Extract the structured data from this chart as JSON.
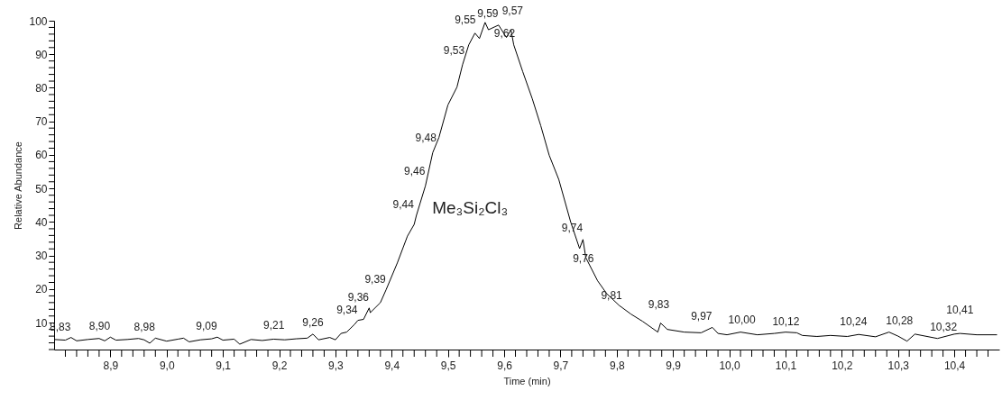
{
  "chart_data": {
    "type": "line",
    "xlabel": "Time (min)",
    "ylabel": "Relative Abundance",
    "xlim": [
      8.8,
      10.48
    ],
    "ylim": [
      2,
      100
    ],
    "xticks": [
      {
        "value": 8.82,
        "label": null
      },
      {
        "value": 8.84,
        "label": null
      },
      {
        "value": 8.86,
        "label": null
      },
      {
        "value": 8.88,
        "label": null
      },
      {
        "value": 8.9,
        "label": "8,9"
      },
      {
        "value": 8.92,
        "label": null
      },
      {
        "value": 8.94,
        "label": null
      },
      {
        "value": 8.96,
        "label": null
      },
      {
        "value": 8.98,
        "label": null
      },
      {
        "value": 9.0,
        "label": "9,0"
      },
      {
        "value": 9.02,
        "label": null
      },
      {
        "value": 9.04,
        "label": null
      },
      {
        "value": 9.06,
        "label": null
      },
      {
        "value": 9.08,
        "label": null
      },
      {
        "value": 9.1,
        "label": "9,1"
      },
      {
        "value": 9.12,
        "label": null
      },
      {
        "value": 9.14,
        "label": null
      },
      {
        "value": 9.16,
        "label": null
      },
      {
        "value": 9.18,
        "label": null
      },
      {
        "value": 9.2,
        "label": "9,2"
      },
      {
        "value": 9.22,
        "label": null
      },
      {
        "value": 9.24,
        "label": null
      },
      {
        "value": 9.26,
        "label": null
      },
      {
        "value": 9.28,
        "label": null
      },
      {
        "value": 9.3,
        "label": "9,3"
      },
      {
        "value": 9.32,
        "label": null
      },
      {
        "value": 9.34,
        "label": null
      },
      {
        "value": 9.36,
        "label": null
      },
      {
        "value": 9.38,
        "label": null
      },
      {
        "value": 9.4,
        "label": "9,4"
      },
      {
        "value": 9.42,
        "label": null
      },
      {
        "value": 9.44,
        "label": null
      },
      {
        "value": 9.46,
        "label": null
      },
      {
        "value": 9.48,
        "label": null
      },
      {
        "value": 9.5,
        "label": "9,5"
      },
      {
        "value": 9.52,
        "label": null
      },
      {
        "value": 9.54,
        "label": null
      },
      {
        "value": 9.56,
        "label": null
      },
      {
        "value": 9.58,
        "label": null
      },
      {
        "value": 9.6,
        "label": "9,6"
      },
      {
        "value": 9.62,
        "label": null
      },
      {
        "value": 9.64,
        "label": null
      },
      {
        "value": 9.66,
        "label": null
      },
      {
        "value": 9.68,
        "label": null
      },
      {
        "value": 9.7,
        "label": "9,7"
      },
      {
        "value": 9.72,
        "label": null
      },
      {
        "value": 9.74,
        "label": null
      },
      {
        "value": 9.76,
        "label": null
      },
      {
        "value": 9.78,
        "label": null
      },
      {
        "value": 9.8,
        "label": "9,8"
      },
      {
        "value": 9.82,
        "label": null
      },
      {
        "value": 9.84,
        "label": null
      },
      {
        "value": 9.86,
        "label": null
      },
      {
        "value": 9.88,
        "label": null
      },
      {
        "value": 9.9,
        "label": "9,9"
      },
      {
        "value": 9.92,
        "label": null
      },
      {
        "value": 9.94,
        "label": null
      },
      {
        "value": 9.96,
        "label": null
      },
      {
        "value": 9.98,
        "label": null
      },
      {
        "value": 10.0,
        "label": "10,0"
      },
      {
        "value": 10.02,
        "label": null
      },
      {
        "value": 10.04,
        "label": null
      },
      {
        "value": 10.06,
        "label": null
      },
      {
        "value": 10.08,
        "label": null
      },
      {
        "value": 10.1,
        "label": "10,1"
      },
      {
        "value": 10.12,
        "label": null
      },
      {
        "value": 10.14,
        "label": null
      },
      {
        "value": 10.16,
        "label": null
      },
      {
        "value": 10.18,
        "label": null
      },
      {
        "value": 10.2,
        "label": "10,2"
      },
      {
        "value": 10.22,
        "label": null
      },
      {
        "value": 10.24,
        "label": null
      },
      {
        "value": 10.26,
        "label": null
      },
      {
        "value": 10.28,
        "label": null
      },
      {
        "value": 10.3,
        "label": "10,3"
      },
      {
        "value": 10.32,
        "label": null
      },
      {
        "value": 10.34,
        "label": null
      },
      {
        "value": 10.36,
        "label": null
      },
      {
        "value": 10.38,
        "label": null
      },
      {
        "value": 10.4,
        "label": "10,4"
      },
      {
        "value": 10.42,
        "label": null
      },
      {
        "value": 10.44,
        "label": null
      },
      {
        "value": 10.46,
        "label": null
      }
    ],
    "yticks": [
      {
        "value": 2,
        "label": null
      },
      {
        "value": 4,
        "label": null
      },
      {
        "value": 6,
        "label": null
      },
      {
        "value": 8,
        "label": null
      },
      10,
      {
        "value": 12,
        "label": null
      },
      {
        "value": 14,
        "label": null
      },
      {
        "value": 16,
        "label": null
      },
      {
        "value": 18,
        "label": null
      },
      20,
      {
        "value": 22,
        "label": null
      },
      {
        "value": 24,
        "label": null
      },
      {
        "value": 26,
        "label": null
      },
      {
        "value": 28,
        "label": null
      },
      30,
      {
        "value": 32,
        "label": null
      },
      {
        "value": 34,
        "label": null
      },
      {
        "value": 36,
        "label": null
      },
      {
        "value": 38,
        "label": null
      },
      40,
      {
        "value": 42,
        "label": null
      },
      {
        "value": 44,
        "label": null
      },
      {
        "value": 46,
        "label": null
      },
      {
        "value": 48,
        "label": null
      },
      50,
      {
        "value": 52,
        "label": null
      },
      {
        "value": 54,
        "label": null
      },
      {
        "value": 56,
        "label": null
      },
      {
        "value": 58,
        "label": null
      },
      60,
      {
        "value": 62,
        "label": null
      },
      {
        "value": 64,
        "label": null
      },
      {
        "value": 66,
        "label": null
      },
      {
        "value": 68,
        "label": null
      },
      70,
      {
        "value": 72,
        "label": null
      },
      {
        "value": 74,
        "label": null
      },
      {
        "value": 76,
        "label": null
      },
      {
        "value": 78,
        "label": null
      },
      80,
      {
        "value": 82,
        "label": null
      },
      {
        "value": 84,
        "label": null
      },
      {
        "value": 86,
        "label": null
      },
      {
        "value": 88,
        "label": null
      },
      90,
      {
        "value": 92,
        "label": null
      },
      {
        "value": 94,
        "label": null
      },
      {
        "value": 96,
        "label": null
      },
      {
        "value": 98,
        "label": null
      },
      100
    ],
    "grid": false,
    "line_style": "solid",
    "marker": "none",
    "x": [
      8.8,
      8.82,
      8.83,
      8.84,
      8.86,
      8.88,
      8.89,
      8.9,
      8.91,
      8.93,
      8.95,
      8.96,
      8.97,
      8.98,
      9.0,
      9.02,
      9.03,
      9.04,
      9.06,
      9.08,
      9.09,
      9.1,
      9.12,
      9.13,
      9.15,
      9.17,
      9.19,
      9.21,
      9.23,
      9.25,
      9.26,
      9.27,
      9.29,
      9.3,
      9.31,
      9.32,
      9.334,
      9.34,
      9.35,
      9.36,
      9.362,
      9.38,
      9.39,
      9.41,
      9.428,
      9.44,
      9.444,
      9.46,
      9.473,
      9.484,
      9.5,
      9.516,
      9.526,
      9.537,
      9.548,
      9.556,
      9.566,
      9.572,
      9.59,
      9.604,
      9.612,
      9.617,
      9.633,
      9.65,
      9.665,
      9.68,
      9.697,
      9.718,
      9.734,
      9.74,
      9.745,
      9.766,
      9.782,
      9.804,
      9.825,
      9.846,
      9.873,
      9.878,
      9.89,
      9.92,
      9.95,
      9.97,
      9.98,
      9.996,
      10.02,
      10.05,
      10.08,
      10.1,
      10.12,
      10.13,
      10.156,
      10.18,
      10.21,
      10.23,
      10.26,
      10.284,
      10.3,
      10.316,
      10.33,
      10.37,
      10.4,
      10.41,
      10.44,
      10.476
    ],
    "series": [
      {
        "color": "#000000",
        "values": [
          5.0,
          4.8,
          5.6,
          4.6,
          5.0,
          5.3,
          4.6,
          5.7,
          4.8,
          5.0,
          5.3,
          4.9,
          3.9,
          5.4,
          4.5,
          5.1,
          5.4,
          4.3,
          4.9,
          5.2,
          5.7,
          4.8,
          5.1,
          3.6,
          5.0,
          4.7,
          5.1,
          4.9,
          5.2,
          5.4,
          6.6,
          4.9,
          5.6,
          4.9,
          6.8,
          7.2,
          9.5,
          10.7,
          11,
          14.4,
          13,
          16,
          19.8,
          27.8,
          35.8,
          39.3,
          42,
          50.8,
          60.7,
          65.2,
          74.9,
          80.2,
          86.9,
          92.8,
          96.3,
          94.7,
          99.5,
          97.3,
          98.7,
          95,
          97.3,
          92.8,
          84.8,
          76.7,
          68.7,
          59.9,
          52.7,
          40.1,
          32.1,
          34.8,
          29.4,
          22.5,
          18.7,
          15.2,
          12.6,
          10.4,
          7.2,
          9.9,
          8,
          7.2,
          7.0,
          8.6,
          6.8,
          6.4,
          7.2,
          6.4,
          6.8,
          7.2,
          7.0,
          6.2,
          5.9,
          6.2,
          5.9,
          6.5,
          5.8,
          7.2,
          6.0,
          4.5,
          6.6,
          5.3,
          6.6,
          6.8,
          6.4,
          6.4
        ]
      }
    ],
    "annotations": [
      "Me₃Si₂Cl₃",
      {
        "text": "8,83",
        "x": 8.83,
        "y": 5.6
      },
      {
        "text": "8,90",
        "x": 8.9,
        "y": 5.7
      },
      {
        "text": "8,98",
        "x": 8.98,
        "y": 5.4
      },
      {
        "text": "9,09",
        "x": 9.09,
        "y": 5.7
      },
      {
        "text": "9,21",
        "x": 9.21,
        "y": 6
      },
      {
        "text": "9,26",
        "x": 9.26,
        "y": 6.6
      },
      {
        "text": "9,34",
        "x": 9.34,
        "y": 10.7
      },
      {
        "text": "9,36",
        "x": 9.36,
        "y": 14.4
      },
      {
        "text": "9,39",
        "x": 9.39,
        "y": 19.8
      },
      {
        "text": "9,44",
        "x": 9.44,
        "y": 42
      },
      {
        "text": "9,46",
        "x": 9.46,
        "y": 52
      },
      {
        "text": "9,48",
        "x": 9.48,
        "y": 62
      },
      {
        "text": "9,53",
        "x": 9.53,
        "y": 88
      },
      {
        "text": "9,55",
        "x": 9.55,
        "y": 97
      },
      {
        "text": "9,57",
        "x": 9.57,
        "y": 99.5
      },
      {
        "text": "9,59",
        "x": 9.59,
        "y": 99
      },
      {
        "text": "9,62",
        "x": 9.62,
        "y": 93
      },
      {
        "text": "9,74",
        "x": 9.74,
        "y": 35
      },
      {
        "text": "9,76",
        "x": 9.76,
        "y": 26
      },
      {
        "text": "9,81",
        "x": 9.81,
        "y": 15
      },
      {
        "text": "9,83",
        "x": 9.83,
        "y": 12
      },
      {
        "text": "9,97",
        "x": 9.97,
        "y": 8.6
      },
      {
        "text": "10,00",
        "x": 10.0,
        "y": 7.5
      },
      {
        "text": "10,12",
        "x": 10.12,
        "y": 7
      },
      {
        "text": "10,24",
        "x": 10.24,
        "y": 7.2
      },
      {
        "text": "10,28",
        "x": 10.28,
        "y": 7.2
      },
      {
        "text": "10,32",
        "x": 10.32,
        "y": 7
      },
      {
        "text": "10,41",
        "x": 10.41,
        "y": 6.8
      }
    ]
  }
}
